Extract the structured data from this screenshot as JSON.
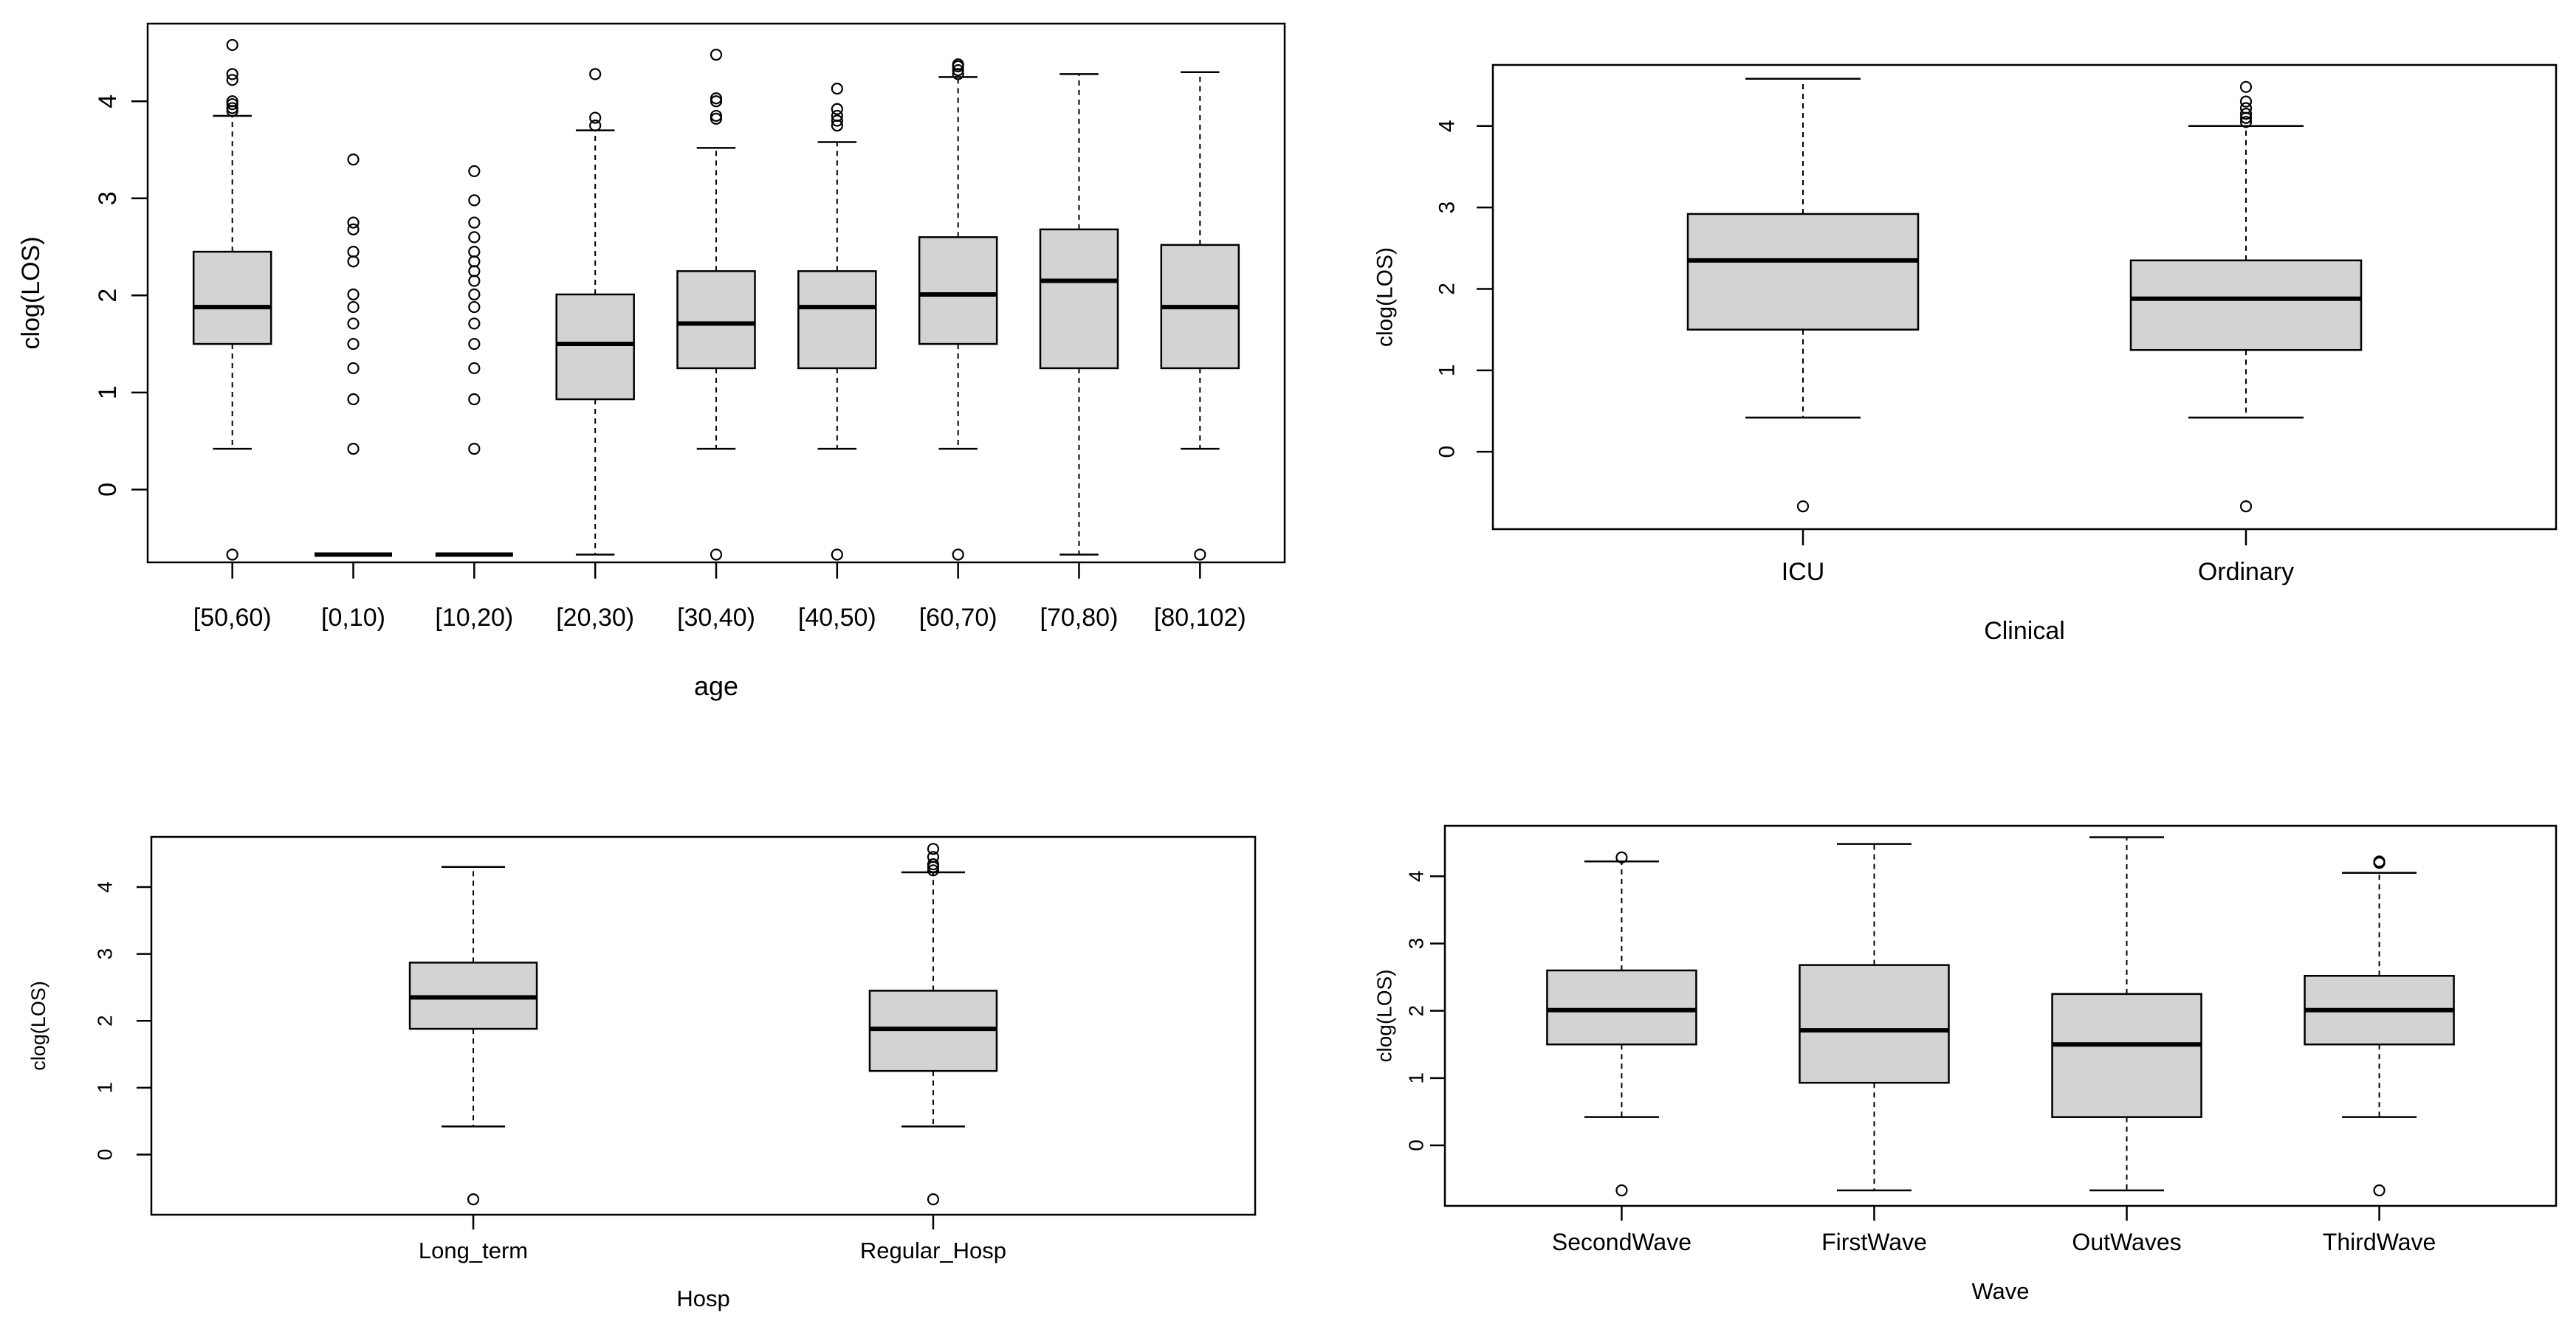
{
  "chart_data": [
    {
      "type": "boxplot",
      "title": "",
      "xlabel": "age",
      "ylabel": "clog(LOS)",
      "ylim": [
        -0.75,
        4.8
      ],
      "yticks": [
        0,
        1,
        2,
        3,
        4
      ],
      "categories": [
        "[50,60)",
        "[0,10)",
        "[10,20)",
        "[20,30)",
        "[30,40)",
        "[40,50)",
        "[60,70)",
        "[70,80)",
        "[80,102)"
      ],
      "boxes": [
        {
          "whisker_low": 0.42,
          "q1": 1.5,
          "median": 1.88,
          "q3": 2.45,
          "whisker_high": 3.85,
          "outliers": [
            -0.67,
            3.9,
            3.93,
            3.97,
            4.0,
            4.22,
            4.28,
            4.58
          ]
        },
        {
          "whisker_low": -0.67,
          "q1": -0.67,
          "median": -0.67,
          "q3": -0.67,
          "whisker_high": -0.67,
          "outliers": [
            0.42,
            0.93,
            1.25,
            1.5,
            1.71,
            1.88,
            2.01,
            2.35,
            2.45,
            2.68,
            2.75,
            3.4
          ]
        },
        {
          "whisker_low": -0.67,
          "q1": -0.67,
          "median": -0.67,
          "q3": -0.67,
          "whisker_high": -0.67,
          "outliers": [
            0.42,
            0.93,
            1.25,
            1.5,
            1.71,
            1.88,
            2.01,
            2.15,
            2.25,
            2.35,
            2.45,
            2.6,
            2.75,
            2.98,
            3.28
          ]
        },
        {
          "whisker_low": -0.67,
          "q1": 0.93,
          "median": 1.5,
          "q3": 2.01,
          "whisker_high": 3.7,
          "outliers": [
            3.75,
            3.83,
            4.28
          ]
        },
        {
          "whisker_low": 0.42,
          "q1": 1.25,
          "median": 1.71,
          "q3": 2.25,
          "whisker_high": 3.52,
          "outliers": [
            -0.67,
            3.82,
            3.85,
            4.0,
            4.03,
            4.48
          ]
        },
        {
          "whisker_low": 0.42,
          "q1": 1.25,
          "median": 1.88,
          "q3": 2.25,
          "whisker_high": 3.58,
          "outliers": [
            -0.67,
            3.75,
            3.8,
            3.85,
            3.92,
            4.13
          ]
        },
        {
          "whisker_low": 0.42,
          "q1": 1.5,
          "median": 2.01,
          "q3": 2.6,
          "whisker_high": 4.25,
          "outliers": [
            -0.67,
            4.28,
            4.32,
            4.36,
            4.38
          ]
        },
        {
          "whisker_low": -0.67,
          "q1": 1.25,
          "median": 2.15,
          "q3": 2.68,
          "whisker_high": 4.28,
          "outliers": []
        },
        {
          "whisker_low": 0.42,
          "q1": 1.25,
          "median": 1.88,
          "q3": 2.52,
          "whisker_high": 4.3,
          "outliers": [
            -0.67
          ]
        }
      ]
    },
    {
      "type": "boxplot",
      "title": "",
      "xlabel": "Clinical",
      "ylabel": "clog(LOS)",
      "ylim": [
        -0.95,
        4.75
      ],
      "yticks": [
        0,
        1,
        2,
        3,
        4
      ],
      "categories": [
        "ICU",
        "Ordinary"
      ],
      "boxes": [
        {
          "whisker_low": 0.42,
          "q1": 1.5,
          "median": 2.35,
          "q3": 2.92,
          "whisker_high": 4.58,
          "outliers": [
            -0.67
          ]
        },
        {
          "whisker_low": 0.42,
          "q1": 1.25,
          "median": 1.88,
          "q3": 2.35,
          "whisker_high": 4.0,
          "outliers": [
            -0.67,
            4.05,
            4.1,
            4.15,
            4.22,
            4.3,
            4.48
          ]
        }
      ]
    },
    {
      "type": "boxplot",
      "title": "",
      "xlabel": "Hosp",
      "ylabel": "clog(LOS)",
      "ylim": [
        -0.9,
        4.75
      ],
      "yticks": [
        0,
        1,
        2,
        3,
        4
      ],
      "categories": [
        "Long_term",
        "Regular_Hosp"
      ],
      "boxes": [
        {
          "whisker_low": 0.42,
          "q1": 1.88,
          "median": 2.35,
          "q3": 2.87,
          "whisker_high": 4.3,
          "outliers": [
            -0.67
          ]
        },
        {
          "whisker_low": 0.42,
          "q1": 1.25,
          "median": 1.88,
          "q3": 2.45,
          "whisker_high": 4.22,
          "outliers": [
            -0.67,
            4.25,
            4.3,
            4.34,
            4.45,
            4.57
          ]
        }
      ]
    },
    {
      "type": "boxplot",
      "title": "",
      "xlabel": "Wave",
      "ylabel": "clog(LOS)",
      "ylim": [
        -0.9,
        4.75
      ],
      "yticks": [
        0,
        1,
        2,
        3,
        4
      ],
      "categories": [
        "SecondWave",
        "FirstWave",
        "OutWaves",
        "ThirdWave"
      ],
      "boxes": [
        {
          "whisker_low": 0.42,
          "q1": 1.5,
          "median": 2.01,
          "q3": 2.6,
          "whisker_high": 4.22,
          "outliers": [
            -0.67,
            4.28
          ]
        },
        {
          "whisker_low": -0.67,
          "q1": 0.93,
          "median": 1.71,
          "q3": 2.68,
          "whisker_high": 4.48,
          "outliers": []
        },
        {
          "whisker_low": -0.67,
          "q1": 0.42,
          "median": 1.5,
          "q3": 2.25,
          "whisker_high": 4.58,
          "outliers": []
        },
        {
          "whisker_low": 0.42,
          "q1": 1.5,
          "median": 2.01,
          "q3": 2.52,
          "whisker_high": 4.05,
          "outliers": [
            -0.67,
            4.2,
            4.22
          ]
        }
      ]
    }
  ]
}
